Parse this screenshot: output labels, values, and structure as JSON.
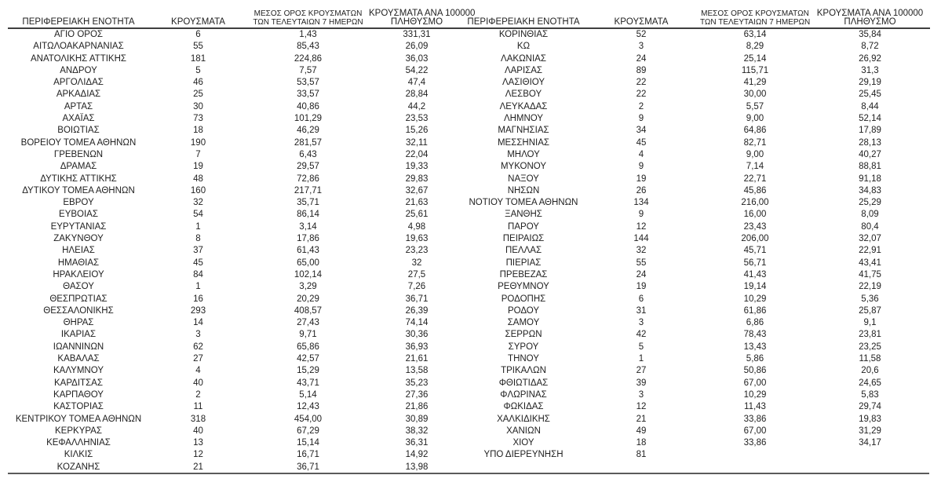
{
  "colors": {
    "background": "#ffffff",
    "text": "#1f1f1f",
    "header_rule": "#3f3f3f",
    "bottom_rule": "#5a5a5a"
  },
  "table": {
    "headers": {
      "region": "ΠΕΡΙΦΕΡΕΙΑΚΗ ΕΝΟΤΗΤΑ",
      "cases": "ΚΡΟΥΣΜΑΤΑ",
      "avg7_line1": "ΜΕΣΟΣ ΟΡΟΣ ΚΡΟΥΣΜΑΤΩΝ",
      "avg7_line2": "ΤΩΝ ΤΕΛΕΥΤΑΙΩΝ 7 ΗΜΕΡΩΝ",
      "per100k_line1": "ΚΡΟΥΣΜΑΤΑ ΑΝΑ 100000",
      "per100k_line2": "ΠΛΗΘΥΣΜΟ"
    },
    "left_rows": [
      [
        "ΑΓΙΟ ΟΡΟΣ",
        "6",
        "1,43",
        "331,31"
      ],
      [
        "ΑΙΤΩΛΟΑΚΑΡΝΑΝΙΑΣ",
        "55",
        "85,43",
        "26,09"
      ],
      [
        "ΑΝΑΤΟΛΙΚΗΣ ΑΤΤΙΚΗΣ",
        "181",
        "224,86",
        "36,03"
      ],
      [
        "ΑΝΔΡΟΥ",
        "5",
        "7,57",
        "54,22"
      ],
      [
        "ΑΡΓΟΛΙΔΑΣ",
        "46",
        "53,57",
        "47,4"
      ],
      [
        "ΑΡΚΑΔΙΑΣ",
        "25",
        "33,57",
        "28,84"
      ],
      [
        "ΑΡΤΑΣ",
        "30",
        "40,86",
        "44,2"
      ],
      [
        "ΑΧΑΪΑΣ",
        "73",
        "101,29",
        "23,53"
      ],
      [
        "ΒΟΙΩΤΙΑΣ",
        "18",
        "46,29",
        "15,26"
      ],
      [
        "ΒΟΡΕΙΟΥ ΤΟΜΕΑ ΑΘΗΝΩΝ",
        "190",
        "281,57",
        "32,11"
      ],
      [
        "ΓΡΕΒΕΝΩΝ",
        "7",
        "6,43",
        "22,04"
      ],
      [
        "ΔΡΑΜΑΣ",
        "19",
        "29,57",
        "19,33"
      ],
      [
        "ΔΥΤΙΚΗΣ ΑΤΤΙΚΗΣ",
        "48",
        "72,86",
        "29,83"
      ],
      [
        "ΔΥΤΙΚΟΥ ΤΟΜΕΑ ΑΘΗΝΩΝ",
        "160",
        "217,71",
        "32,67"
      ],
      [
        "ΕΒΡΟΥ",
        "32",
        "35,71",
        "21,63"
      ],
      [
        "ΕΥΒΟΙΑΣ",
        "54",
        "86,14",
        "25,61"
      ],
      [
        "ΕΥΡΥΤΑΝΙΑΣ",
        "1",
        "3,14",
        "4,98"
      ],
      [
        "ΖΑΚΥΝΘΟΥ",
        "8",
        "17,86",
        "19,63"
      ],
      [
        "ΗΛΕΙΑΣ",
        "37",
        "61,43",
        "23,23"
      ],
      [
        "ΗΜΑΘΙΑΣ",
        "45",
        "65,00",
        "32"
      ],
      [
        "ΗΡΑΚΛΕΙΟΥ",
        "84",
        "102,14",
        "27,5"
      ],
      [
        "ΘΑΣΟΥ",
        "1",
        "3,29",
        "7,26"
      ],
      [
        "ΘΕΣΠΡΩΤΙΑΣ",
        "16",
        "20,29",
        "36,71"
      ],
      [
        "ΘΕΣΣΑΛΟΝΙΚΗΣ",
        "293",
        "408,57",
        "26,39"
      ],
      [
        "ΘΗΡΑΣ",
        "14",
        "27,43",
        "74,14"
      ],
      [
        "ΙΚΑΡΙΑΣ",
        "3",
        "9,71",
        "30,36"
      ],
      [
        "ΙΩΑΝΝΙΝΩΝ",
        "62",
        "65,86",
        "36,93"
      ],
      [
        "ΚΑΒΑΛΑΣ",
        "27",
        "42,57",
        "21,61"
      ],
      [
        "ΚΑΛΥΜΝΟΥ",
        "4",
        "15,29",
        "13,58"
      ],
      [
        "ΚΑΡΔΙΤΣΑΣ",
        "40",
        "43,71",
        "35,23"
      ],
      [
        "ΚΑΡΠΑΘΟΥ",
        "2",
        "5,14",
        "27,36"
      ],
      [
        "ΚΑΣΤΟΡΙΑΣ",
        "11",
        "12,43",
        "21,86"
      ],
      [
        "ΚΕΝΤΡΙΚΟΥ ΤΟΜΕΑ ΑΘΗΝΩΝ",
        "318",
        "454,00",
        "30,89"
      ],
      [
        "ΚΕΡΚΥΡΑΣ",
        "40",
        "67,29",
        "38,32"
      ],
      [
        "ΚΕΦΑΛΛΗΝΙΑΣ",
        "13",
        "15,14",
        "36,31"
      ],
      [
        "ΚΙΛΚΙΣ",
        "12",
        "16,71",
        "14,92"
      ],
      [
        "ΚΟΖΑΝΗΣ",
        "21",
        "36,71",
        "13,98"
      ]
    ],
    "right_rows": [
      [
        "ΚΟΡΙΝΘΙΑΣ",
        "52",
        "63,14",
        "35,84"
      ],
      [
        "ΚΩ",
        "3",
        "8,29",
        "8,72"
      ],
      [
        "ΛΑΚΩΝΙΑΣ",
        "24",
        "25,14",
        "26,92"
      ],
      [
        "ΛΑΡΙΣΑΣ",
        "89",
        "115,71",
        "31,3"
      ],
      [
        "ΛΑΣΙΘΙΟΥ",
        "22",
        "41,29",
        "29,19"
      ],
      [
        "ΛΕΣΒΟΥ",
        "22",
        "30,00",
        "25,45"
      ],
      [
        "ΛΕΥΚΑΔΑΣ",
        "2",
        "5,57",
        "8,44"
      ],
      [
        "ΛΗΜΝΟΥ",
        "9",
        "9,00",
        "52,14"
      ],
      [
        "ΜΑΓΝΗΣΙΑΣ",
        "34",
        "64,86",
        "17,89"
      ],
      [
        "ΜΕΣΣΗΝΙΑΣ",
        "45",
        "82,71",
        "28,13"
      ],
      [
        "ΜΗΛΟΥ",
        "4",
        "9,00",
        "40,27"
      ],
      [
        "ΜΥΚΟΝΟΥ",
        "9",
        "7,14",
        "88,81"
      ],
      [
        "ΝΑΞΟΥ",
        "19",
        "22,71",
        "91,18"
      ],
      [
        "ΝΗΣΩΝ",
        "26",
        "45,86",
        "34,83"
      ],
      [
        "ΝΟΤΙΟΥ ΤΟΜΕΑ ΑΘΗΝΩΝ",
        "134",
        "216,00",
        "25,29"
      ],
      [
        "ΞΑΝΘΗΣ",
        "9",
        "16,00",
        "8,09"
      ],
      [
        "ΠΑΡΟΥ",
        "12",
        "23,43",
        "80,4"
      ],
      [
        "ΠΕΙΡΑΙΩΣ",
        "144",
        "206,00",
        "32,07"
      ],
      [
        "ΠΕΛΛΑΣ",
        "32",
        "45,71",
        "22,91"
      ],
      [
        "ΠΙΕΡΙΑΣ",
        "55",
        "56,71",
        "43,41"
      ],
      [
        "ΠΡΕΒΕΖΑΣ",
        "24",
        "41,43",
        "41,75"
      ],
      [
        "ΡΕΘΥΜΝΟΥ",
        "19",
        "19,14",
        "22,19"
      ],
      [
        "ΡΟΔΟΠΗΣ",
        "6",
        "10,29",
        "5,36"
      ],
      [
        "ΡΟΔΟΥ",
        "31",
        "61,86",
        "25,87"
      ],
      [
        "ΣΑΜΟΥ",
        "3",
        "6,86",
        "9,1"
      ],
      [
        "ΣΕΡΡΩΝ",
        "42",
        "78,43",
        "23,81"
      ],
      [
        "ΣΥΡΟΥ",
        "5",
        "13,43",
        "23,25"
      ],
      [
        "ΤΗΝΟΥ",
        "1",
        "5,86",
        "11,58"
      ],
      [
        "ΤΡΙΚΑΛΩΝ",
        "27",
        "50,86",
        "20,6"
      ],
      [
        "ΦΘΙΩΤΙΔΑΣ",
        "39",
        "67,00",
        "24,65"
      ],
      [
        "ΦΛΩΡΙΝΑΣ",
        "3",
        "10,29",
        "5,83"
      ],
      [
        "ΦΩΚΙΔΑΣ",
        "12",
        "11,43",
        "29,74"
      ],
      [
        "ΧΑΛΚΙΔΙΚΗΣ",
        "21",
        "33,86",
        "19,83"
      ],
      [
        "ΧΑΝΙΩΝ",
        "49",
        "67,00",
        "31,29"
      ],
      [
        "ΧΙΟΥ",
        "18",
        "33,86",
        "34,17"
      ],
      [
        "ΥΠΟ ΔΙΕΡΕΥΝΗΣΗ",
        "81",
        "",
        ""
      ]
    ]
  }
}
